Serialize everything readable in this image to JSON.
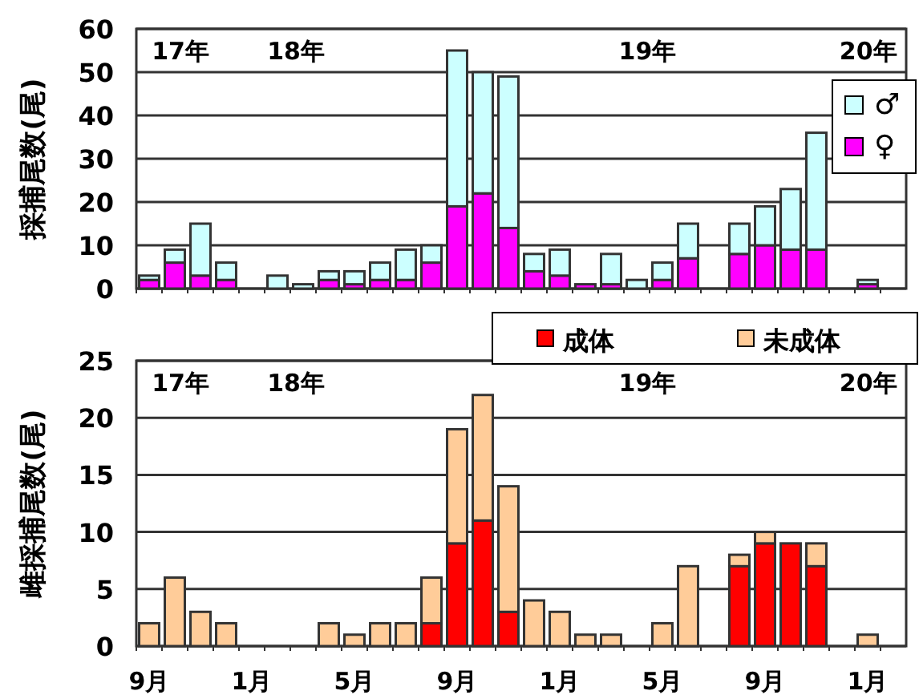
{
  "chart_data": [
    {
      "type": "bar",
      "stacked": true,
      "ylabel": "採捕尾数(尾)",
      "categories": [
        null,
        null,
        null,
        null,
        null,
        null,
        null,
        null,
        null,
        null,
        null,
        null,
        null,
        null,
        null,
        null,
        null,
        null,
        null,
        null,
        null,
        null,
        null,
        null,
        null,
        null,
        null,
        null,
        null,
        null
      ],
      "series": [
        {
          "name": "♀",
          "color": "#ff00ff",
          "values": [
            2,
            6,
            3,
            2,
            0,
            0,
            0,
            2,
            1,
            2,
            2,
            6,
            19,
            22,
            14,
            4,
            3,
            1,
            1,
            0,
            2,
            7,
            0,
            8,
            10,
            9,
            9,
            0,
            1,
            0
          ]
        },
        {
          "name": "♂",
          "color": "#ccffff",
          "values": [
            1,
            3,
            12,
            4,
            0,
            3,
            1,
            2,
            3,
            4,
            7,
            4,
            36,
            28,
            35,
            4,
            6,
            0,
            7,
            2,
            4,
            8,
            0,
            7,
            9,
            14,
            27,
            0,
            1,
            0
          ]
        }
      ],
      "ylim": [
        0,
        60
      ],
      "yticks": [
        0,
        10,
        20,
        30,
        40,
        50,
        60
      ],
      "grid": "y",
      "legend": "top right",
      "tick_labels": "y",
      "annotations": [
        "17年",
        "18年",
        "19年",
        "20年"
      ]
    },
    {
      "type": "bar",
      "stacked": true,
      "ylabel": "雌採捕尾数(尾)",
      "categories": [
        "9月",
        null,
        null,
        null,
        "1月",
        null,
        null,
        null,
        "5月",
        null,
        null,
        null,
        "9月",
        null,
        null,
        null,
        "1月",
        null,
        null,
        null,
        "5月",
        null,
        null,
        null,
        "9月",
        null,
        null,
        null,
        "1月",
        null
      ],
      "series": [
        {
          "name": "成体",
          "color": "#ff0000",
          "values": [
            0,
            0,
            0,
            0,
            0,
            0,
            0,
            0,
            0,
            0,
            0,
            2,
            9,
            11,
            3,
            0,
            0,
            0,
            0,
            0,
            0,
            0,
            0,
            7,
            9,
            9,
            7,
            0,
            0,
            0
          ]
        },
        {
          "name": "未成体",
          "color": "#ffcc99",
          "values": [
            2,
            6,
            3,
            2,
            0,
            0,
            0,
            2,
            1,
            2,
            2,
            4,
            10,
            11,
            11,
            4,
            3,
            1,
            1,
            0,
            2,
            7,
            0,
            1,
            1,
            0,
            2,
            0,
            1,
            0
          ]
        }
      ],
      "ylim": [
        0,
        25
      ],
      "yticks": [
        0,
        5,
        10,
        15,
        20,
        25
      ],
      "grid": "y",
      "legend": "top right",
      "annotations": [
        "17年",
        "18年",
        "19年",
        "20年"
      ]
    }
  ]
}
